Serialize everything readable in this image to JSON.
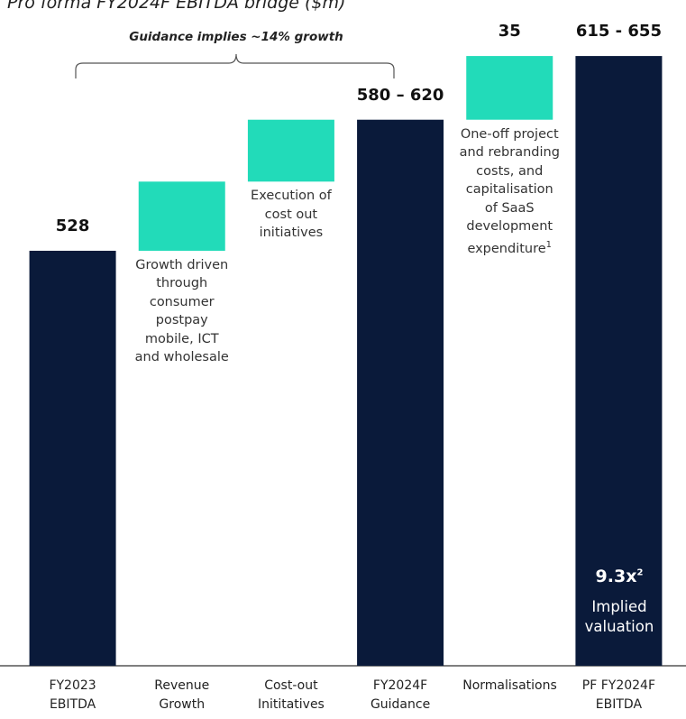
{
  "chart_data": {
    "type": "waterfall",
    "title": "Pro forma FY2024F EBITDA bridge ($m)",
    "bracket_label": "Guidance implies ~14% growth",
    "categories": [
      "FY2023 EBITDA",
      "Revenue Growth",
      "Cost-out Inititatives",
      "FY2024F Guidance",
      "Normalisations",
      "PF FY2024F EBITDA"
    ],
    "kinds": [
      "total",
      "step",
      "step",
      "total",
      "step",
      "total"
    ],
    "values": [
      528,
      38,
      34,
      600,
      35,
      635
    ],
    "value_labels": [
      "528",
      null,
      null,
      "580 – 620",
      "35",
      "615 - 655"
    ],
    "notes": [
      null,
      "Growth driven through consumer postpay mobile, ICT and wholesale",
      "Execution of cost out initiatives",
      null,
      "One-off project and rebranding costs, and capitalisation of SaaS development expenditure",
      null
    ],
    "note_superscripts": [
      null,
      null,
      null,
      null,
      "1",
      null
    ],
    "inner_label": "9.3x",
    "inner_label_superscript": "2",
    "inner_caption": "Implied valuation",
    "total_color": "#0a1a3a",
    "step_color": "#22dbb9",
    "ylim": [
      300,
      640
    ]
  }
}
